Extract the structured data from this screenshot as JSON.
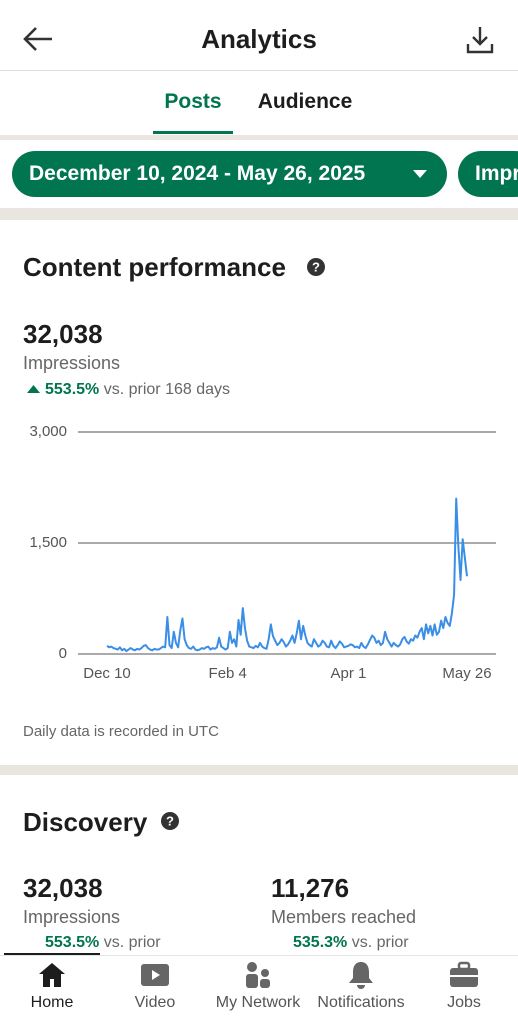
{
  "header": {
    "title": "Analytics"
  },
  "tabs": [
    "Posts",
    "Audience"
  ],
  "filters": [
    "December 10, 2024 - May 26, 2025",
    "Impr"
  ],
  "content_performance": {
    "title": "Content performance",
    "value": "32,038",
    "label": "Impressions",
    "change": "553.5%",
    "change_note": "vs. prior 168 days",
    "note": "Daily data is recorded in UTC"
  },
  "chart_data": {
    "type": "line",
    "color": "#3b8ee6",
    "grid": true,
    "categories": [
      "Dec 10",
      null,
      null,
      null,
      null,
      null,
      null,
      null,
      null,
      null,
      null,
      null,
      null,
      null,
      null,
      null,
      null,
      null,
      null,
      null,
      null,
      null,
      null,
      null,
      null,
      null,
      null,
      null,
      null,
      null,
      null,
      null,
      null,
      null,
      null,
      null,
      null,
      null,
      null,
      null,
      null,
      null,
      null,
      null,
      null,
      null,
      null,
      null,
      null,
      null,
      null,
      null,
      null,
      null,
      null,
      null,
      "Feb 4",
      null,
      null,
      null,
      null,
      null,
      null,
      null,
      null,
      null,
      null,
      null,
      null,
      null,
      null,
      null,
      null,
      null,
      null,
      null,
      null,
      null,
      null,
      null,
      null,
      null,
      null,
      null,
      null,
      null,
      null,
      null,
      null,
      null,
      null,
      null,
      null,
      null,
      null,
      null,
      null,
      null,
      null,
      null,
      null,
      null,
      null,
      null,
      null,
      null,
      null,
      null,
      null,
      null,
      null,
      null,
      "Apr 1",
      null,
      null,
      null,
      null,
      null,
      null,
      null,
      null,
      null,
      null,
      null,
      null,
      null,
      null,
      null,
      null,
      null,
      null,
      null,
      null,
      null,
      null,
      null,
      null,
      null,
      null,
      null,
      null,
      null,
      null,
      null,
      null,
      null,
      null,
      null,
      null,
      null,
      null,
      null,
      null,
      null,
      null,
      null,
      null,
      null,
      null,
      null,
      null,
      null,
      null,
      null,
      null,
      null,
      null,
      "May 26"
    ],
    "values": [
      110,
      90,
      100,
      80,
      70,
      60,
      90,
      50,
      70,
      40,
      60,
      80,
      60,
      50,
      70,
      60,
      80,
      110,
      120,
      80,
      60,
      50,
      70,
      60,
      60,
      80,
      100,
      90,
      500,
      120,
      80,
      300,
      150,
      90,
      320,
      480,
      200,
      120,
      80,
      70,
      100,
      60,
      50,
      60,
      80,
      70,
      90,
      100,
      60,
      80,
      70,
      90,
      220,
      100,
      80,
      60,
      80,
      300,
      150,
      200,
      100,
      460,
      260,
      620,
      350,
      180,
      100,
      90,
      80,
      110,
      90,
      150,
      100,
      80,
      70,
      200,
      400,
      240,
      180,
      120,
      150,
      200,
      160,
      100,
      130,
      180,
      250,
      150,
      280,
      450,
      200,
      380,
      250,
      150,
      120,
      100,
      200,
      150,
      100,
      120,
      180,
      150,
      100,
      90,
      180,
      110,
      80,
      120,
      170,
      140,
      90,
      100,
      110,
      130,
      120,
      90,
      100,
      80,
      150,
      100,
      80,
      130,
      190,
      250,
      220,
      150,
      180,
      120,
      150,
      300,
      200,
      150,
      100,
      150,
      120,
      100,
      130,
      200,
      230,
      170,
      140,
      200,
      180,
      250,
      220,
      300,
      350,
      200,
      400,
      280,
      380,
      250,
      400,
      260,
      300,
      450,
      350,
      500,
      420,
      380,
      550,
      800,
      2100,
      1450,
      1000,
      1550,
      1300,
      1050
    ],
    "ylim": [
      0,
      3000
    ],
    "yticks": [
      0,
      {
        "value": 1500,
        "label": "1,500"
      },
      {
        "value": 3000,
        "label": "3,000"
      }
    ]
  },
  "discovery": {
    "title": "Discovery",
    "metrics": [
      {
        "value": "32,038",
        "label": "Impressions",
        "change": "553.5%",
        "change_note": "vs. prior"
      },
      {
        "value": "11,276",
        "label": "Members reached",
        "change": "535.3%",
        "change_note": "vs. prior"
      }
    ]
  },
  "nav": [
    "Home",
    "Video",
    "My Network",
    "Notifications",
    "Jobs"
  ]
}
